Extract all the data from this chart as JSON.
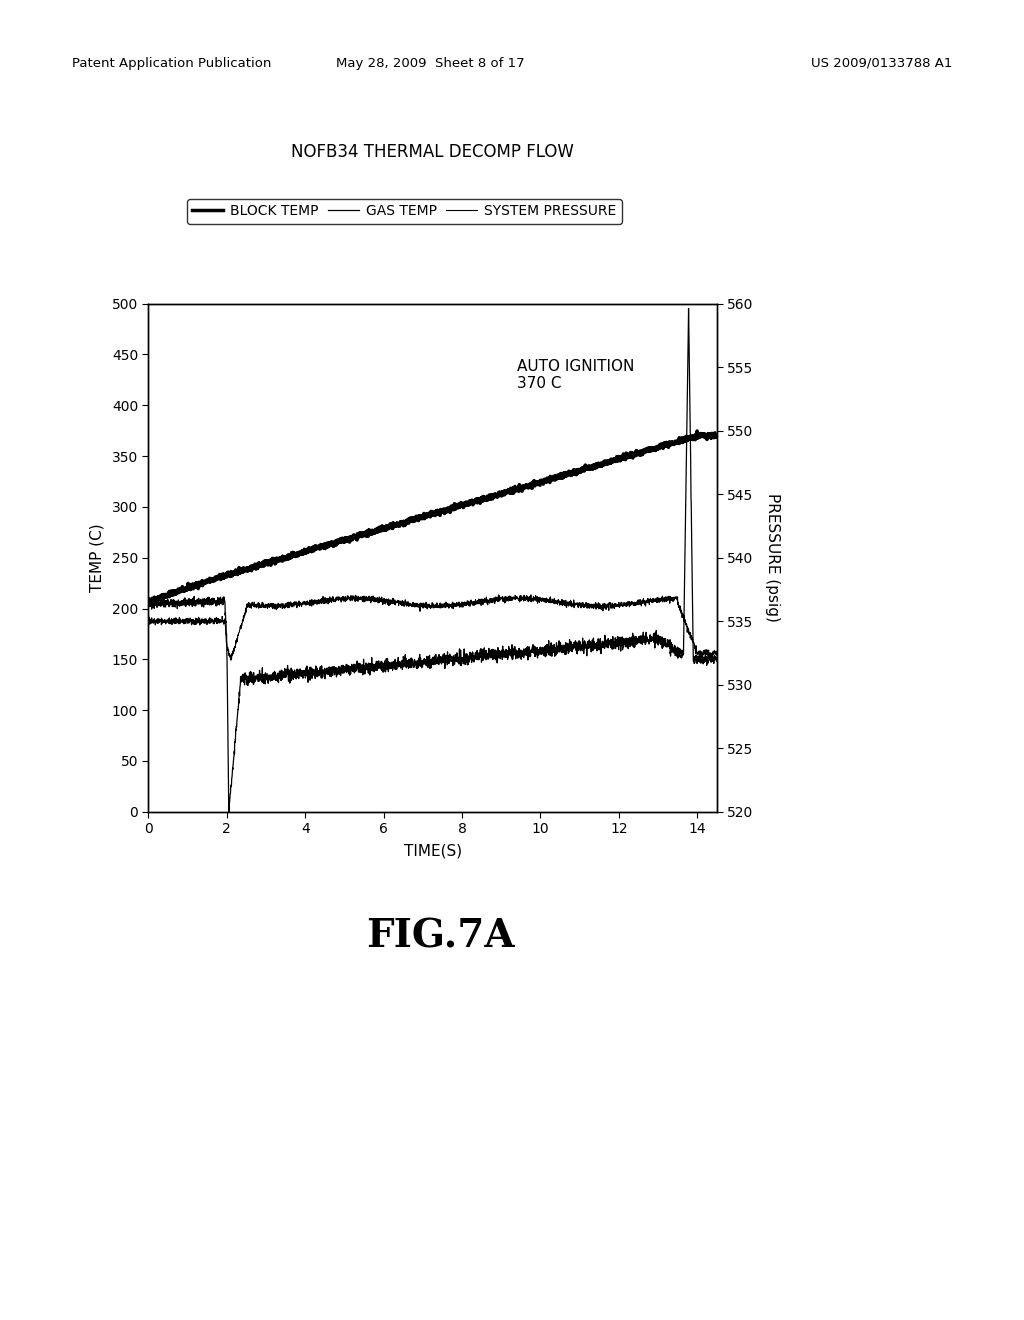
{
  "title": "NOFB34 THERMAL DECOMP FLOW",
  "xlabel": "TIME(S)",
  "ylabel_left": "TEMP (C)",
  "ylabel_right": "PRESSURE (psig)",
  "xlim": [
    0,
    14.5
  ],
  "ylim_left": [
    0,
    500
  ],
  "ylim_right": [
    520,
    560
  ],
  "xticks": [
    0,
    2,
    4,
    6,
    8,
    10,
    12,
    14
  ],
  "yticks_left": [
    0,
    50,
    100,
    150,
    200,
    250,
    300,
    350,
    400,
    450,
    500
  ],
  "yticks_right": [
    520,
    525,
    530,
    535,
    540,
    545,
    550,
    555,
    560
  ],
  "annotation_text": "AUTO IGNITION\n370 C",
  "legend_labels": [
    "BLOCK TEMP",
    "GAS TEMP",
    "SYSTEM PRESSURE"
  ],
  "header_left": "Patent Application Publication",
  "header_mid": "May 28, 2009  Sheet 8 of 17",
  "header_right": "US 2009/0133788 A1",
  "fig_label": "FIG.7A",
  "background_color": "#ffffff"
}
